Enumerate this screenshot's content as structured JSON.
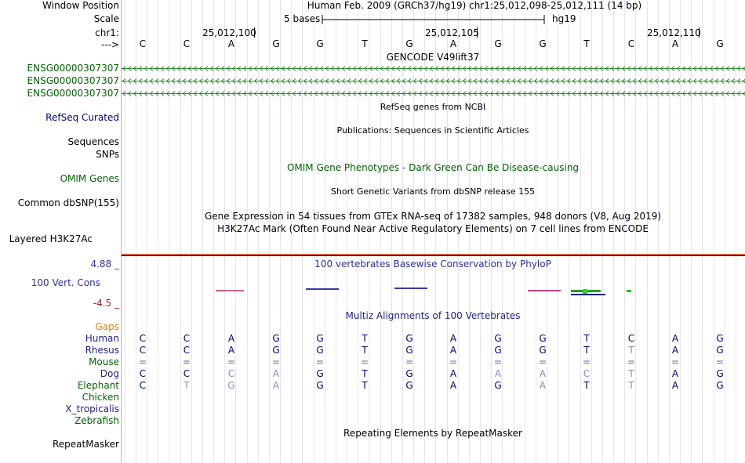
{
  "header": {
    "window_position_label": "Window Position",
    "window_position_value": "Human Feb. 2009 (GRCh37/hg19)   chr1:25,012,098-25,012,111 (14 bp)",
    "scale_label": "Scale",
    "scale_text": "5 bases",
    "scale_assembly": "hg19",
    "chrom_label": "chr1:",
    "strand_label": "--->",
    "positions": [
      "25,012,100",
      "25,012,105",
      "25,012,110"
    ]
  },
  "reference_bases": [
    "C",
    "C",
    "A",
    "G",
    "G",
    "T",
    "G",
    "A",
    "G",
    "G",
    "T",
    "C",
    "A",
    "G"
  ],
  "gencode": {
    "title": "GENCODE V49lift37",
    "rows": [
      "ENSG00000307307",
      "ENSG00000307307",
      "ENSG00000307307"
    ]
  },
  "refseq": {
    "title": "RefSeq genes from NCBI",
    "label": "RefSeq Curated"
  },
  "publications": {
    "title": "Publications: Sequences in Scientific Articles",
    "label1": "Sequences",
    "label2": "SNPs"
  },
  "omim": {
    "title": "OMIM Gene Phenotypes - Dark Green Can Be Disease-causing",
    "label": "OMIM Genes"
  },
  "dbsnp": {
    "title": "Short Genetic Variants from dbSNP release 155",
    "label": "Common dbSNP(155)"
  },
  "gtex": {
    "title": "Gene Expression in 54 tissues from GTEx RNA-seq of 17382 samples, 948 donors (V8, Aug 2019)"
  },
  "h3k27ac": {
    "title": "H3K27Ac Mark (Often Found Near Active Regulatory Elements) on 7 cell lines from ENCODE",
    "label": "Layered H3K27Ac"
  },
  "phylop": {
    "title": "100 vertebrates Basewise Conservation by PhyloP",
    "max_label": "4.88 _",
    "min_label": "-4.5 _",
    "track_label": "100 Vert. Cons"
  },
  "multiz": {
    "title": "Multiz Alignments of 100 Vertebrates",
    "gaps_label": "Gaps",
    "species": [
      {
        "name": "Human",
        "bases": [
          "C",
          "C",
          "A",
          "G",
          "G",
          "T",
          "G",
          "A",
          "G",
          "G",
          "T",
          "C",
          "A",
          "G"
        ],
        "dim": []
      },
      {
        "name": "Rhesus",
        "bases": [
          "C",
          "C",
          "A",
          "G",
          "G",
          "T",
          "G",
          "A",
          "G",
          "G",
          "T",
          "T",
          "A",
          "G"
        ],
        "dim": [
          11
        ]
      },
      {
        "name": "Mouse",
        "bases": [
          "=",
          "=",
          "=",
          "=",
          "=",
          "=",
          "=",
          "=",
          "=",
          "=",
          "=",
          "=",
          "=",
          "="
        ],
        "dim": []
      },
      {
        "name": "Dog",
        "bases": [
          "C",
          "C",
          "C",
          "A",
          "G",
          "T",
          "G",
          "A",
          "A",
          "A",
          "C",
          "T",
          "A",
          "G"
        ],
        "dim": [
          2,
          3,
          8,
          9,
          10,
          11
        ]
      },
      {
        "name": "Elephant",
        "bases": [
          "C",
          "T",
          "G",
          "A",
          "G",
          "T",
          "G",
          "A",
          "G",
          "A",
          "T",
          "T",
          "A",
          "G"
        ],
        "dim": [
          1,
          2,
          3,
          9,
          11
        ]
      },
      {
        "name": "Chicken",
        "bases": [],
        "dim": []
      },
      {
        "name": "X_tropicalis",
        "bases": [],
        "dim": []
      },
      {
        "name": "Zebrafish",
        "bases": [],
        "dim": []
      }
    ]
  },
  "repeatmasker": {
    "title": "Repeating Elements by RepeatMasker",
    "label": "RepeatMasker"
  },
  "colors": {
    "gene_green": "#2e8b2e",
    "divider": "#e8a0a0"
  }
}
